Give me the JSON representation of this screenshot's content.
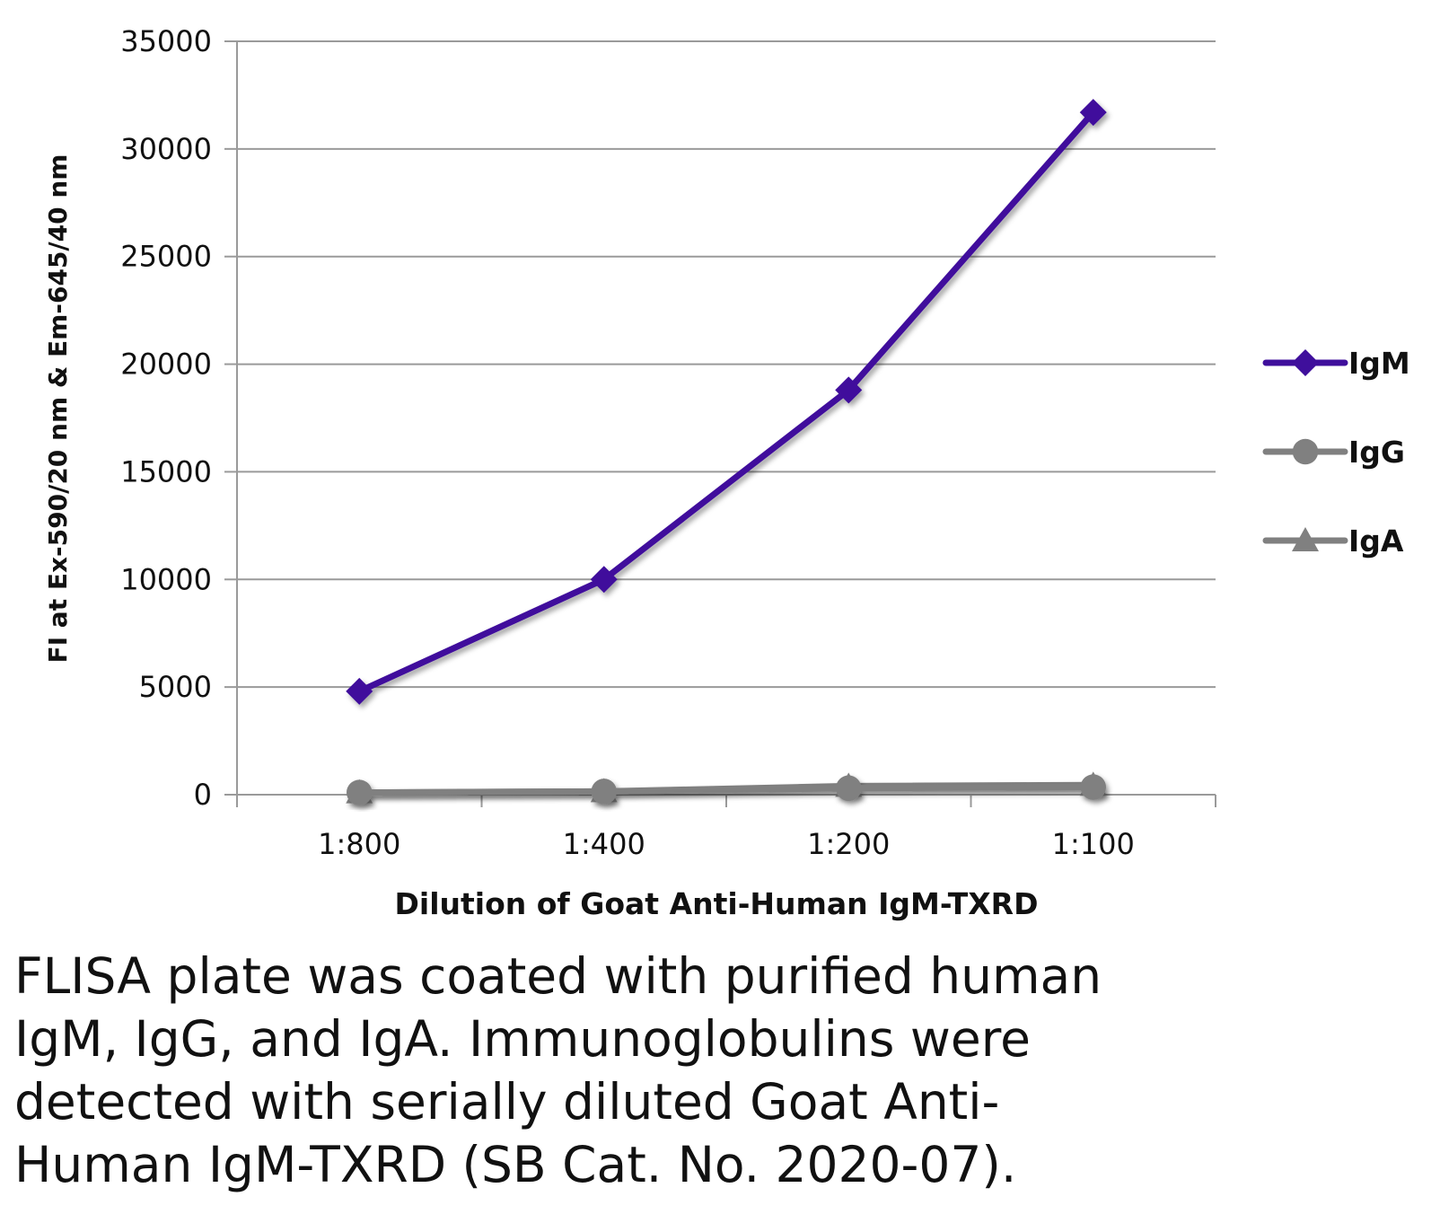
{
  "chart_data": {
    "type": "line",
    "categories": [
      "1:800",
      "1:400",
      "1:200",
      "1:100"
    ],
    "series": [
      {
        "name": "IgM",
        "values": [
          4800,
          10000,
          18800,
          31700
        ],
        "color": "#3f0f9c",
        "marker": "diamond"
      },
      {
        "name": "IgG",
        "values": [
          100,
          150,
          300,
          350
        ],
        "color": "#808080",
        "marker": "circle"
      },
      {
        "name": "IgA",
        "values": [
          100,
          150,
          400,
          450
        ],
        "color": "#808080",
        "marker": "triangle"
      }
    ],
    "xlabel": "Dilution of Goat Anti-Human IgM-TXRD",
    "ylabel": "FI at Ex-590/20 nm & Em-645/40 nm",
    "ylim": [
      0,
      35000
    ],
    "yticks": [
      "0",
      "5000",
      "10000",
      "15000",
      "20000",
      "25000",
      "30000",
      "35000"
    ],
    "grid": true,
    "legend": "right"
  },
  "caption": {
    "lines": [
      "FLISA plate was coated with purified human",
      "IgM, IgG, and IgA.  Immunoglobulins were",
      "detected with serially diluted Goat Anti-",
      "Human IgM-TXRD (SB Cat. No. 2020-07)."
    ]
  }
}
